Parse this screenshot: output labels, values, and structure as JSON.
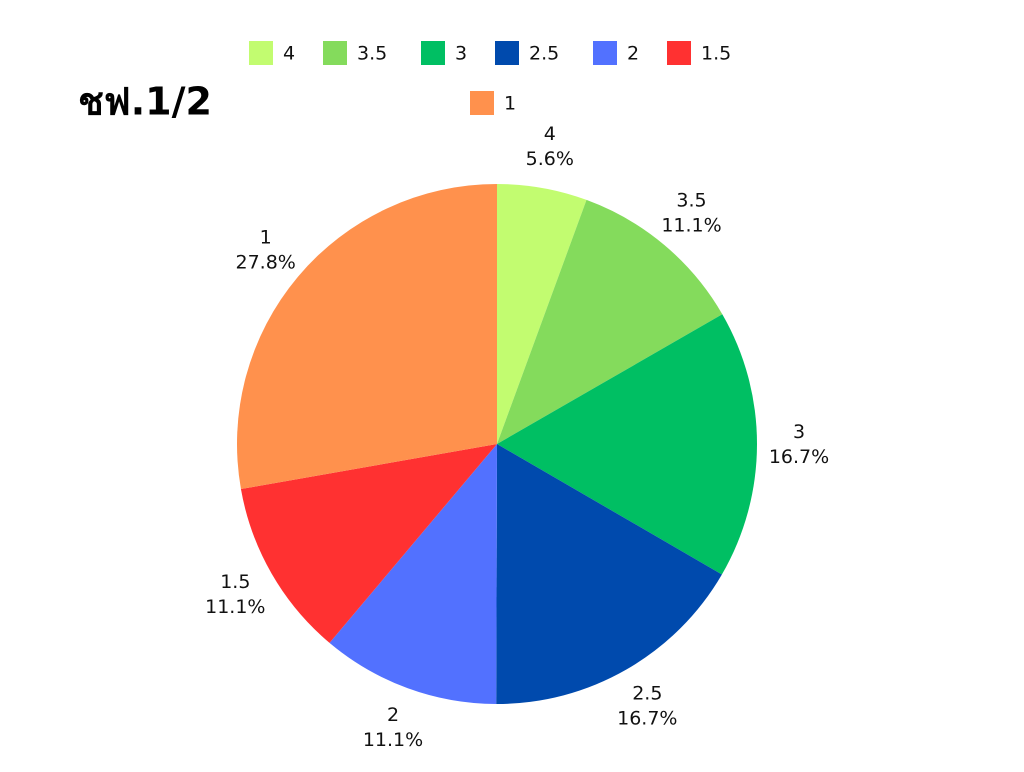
{
  "chart_data": {
    "type": "pie",
    "title": "ชฟ.1/2",
    "categories": [
      "4",
      "3.5",
      "3",
      "2.5",
      "2",
      "1.5",
      "1"
    ],
    "values": [
      5.6,
      11.1,
      16.7,
      16.7,
      11.1,
      11.1,
      27.8
    ],
    "value_labels": [
      "5.6%",
      "11.1%",
      "16.7%",
      "16.7%",
      "11.1%",
      "11.1%",
      "27.8%"
    ],
    "colors": [
      "#c2fc70",
      "#84db5c",
      "#00bf63",
      "#004aad",
      "#5271ff",
      "#ff3131",
      "#ff914d"
    ],
    "legend": "top"
  }
}
